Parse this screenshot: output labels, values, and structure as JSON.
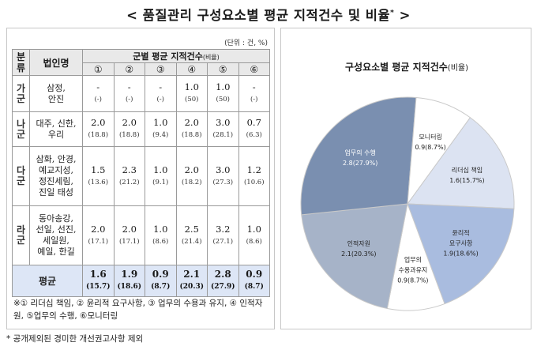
{
  "title": "< 품질관리 구성요소별 평균 지적건수 및 비율",
  "title_mark": "*",
  "title_close": " >",
  "unit": "(단위 : 건, %)",
  "table": {
    "header_category": "분류",
    "header_name": "법인명",
    "header_group": "군별 평균 지적건수",
    "header_group_small": "(비율)",
    "col_nums": [
      "①",
      "②",
      "③",
      "④",
      "⑤",
      "⑥"
    ],
    "groups": [
      {
        "category": "가군",
        "companies": "삼정,\n안진",
        "values": [
          "-",
          "-",
          "-",
          "1.0",
          "1.0",
          "-"
        ],
        "pcts": [
          "(-)",
          "(-)",
          "(-)",
          "(50)",
          "(50)",
          "(-)"
        ]
      },
      {
        "category": "나군",
        "companies": "대주, 신한,\n우리",
        "values": [
          "2.0",
          "2.0",
          "1.0",
          "2.0",
          "3.0",
          "0.7"
        ],
        "pcts": [
          "(18.8)",
          "(18.8)",
          "(9.4)",
          "(18.8)",
          "(28.1)",
          "(6.3)"
        ]
      },
      {
        "category": "다군",
        "companies": "삼화, 안경,\n예교지성,\n정진세림,\n진일 태성",
        "values": [
          "1.5",
          "2.3",
          "1.0",
          "2.0",
          "3.0",
          "1.2"
        ],
        "pcts": [
          "(13.6)",
          "(21.2)",
          "(9.1)",
          "(18.2)",
          "(27.3)",
          "(10.6)"
        ]
      },
      {
        "category": "라군",
        "companies": "동아송강,\n선일, 선진,\n세일원,\n예일, 한길",
        "values": [
          "2.0",
          "2.0",
          "1.0",
          "2.5",
          "3.2",
          "1.0"
        ],
        "pcts": [
          "(17.1)",
          "(17.1)",
          "(8.6)",
          "(21.4)",
          "(27.1)",
          "(8.6)"
        ]
      }
    ],
    "average": {
      "label": "평균",
      "values": [
        "1.6",
        "1.9",
        "0.9",
        "2.1",
        "2.8",
        "0.9"
      ],
      "pcts": [
        "(15.7)",
        "(18.6)",
        "(8.7)",
        "(20.3)",
        "(27.9)",
        "(8.7)"
      ]
    }
  },
  "note": "※① 리더십 책임, ② 윤리적 요구사항, ③ 업무의 수용과 유지, ④ 인적자원, ⑤업무의 수행, ⑥모니터링",
  "footer": "* 공개제외된 경미한 개선권고사항 제외",
  "chart_title": "구성요소별 평균 지적건수",
  "chart_title_small": "(비율)",
  "chart_data": {
    "type": "pie",
    "title": "구성요소별 평균 지적건수(비율)",
    "slices": [
      {
        "label": "리더십 책임",
        "label_lines": [
          "리더십 책임"
        ],
        "value": 1.6,
        "pct": 15.7,
        "text": "1.6(15.7%)",
        "color": "#dce3f2",
        "text_color": "#222222"
      },
      {
        "label": "윤리적 요구사항",
        "label_lines": [
          "윤리적",
          "요구사항"
        ],
        "value": 1.9,
        "pct": 18.6,
        "text": "1.9(18.6%)",
        "color": "#a9bcdf",
        "text_color": "#222222"
      },
      {
        "label": "업무의 수용과유지",
        "label_lines": [
          "업무의",
          "수용과유지"
        ],
        "value": 0.9,
        "pct": 8.7,
        "text": "0.9(8.7%)",
        "color": "#ffffff",
        "text_color": "#222222"
      },
      {
        "label": "인적자원",
        "label_lines": [
          "인적자원"
        ],
        "value": 2.1,
        "pct": 20.3,
        "text": "2.1(20.3%)",
        "color": "#a6b3c8",
        "text_color": "#222222"
      },
      {
        "label": "업무의 수행",
        "label_lines": [
          "업무의 수행"
        ],
        "value": 2.8,
        "pct": 27.9,
        "text": "2.8(27.9%)",
        "color": "#7a8fb0",
        "text_color": "#ffffff"
      },
      {
        "label": "모니터링",
        "label_lines": [
          "모니터링"
        ],
        "value": 0.9,
        "pct": 8.7,
        "text": "0.9(8.7%)",
        "color": "#ffffff",
        "text_color": "#222222"
      }
    ]
  }
}
